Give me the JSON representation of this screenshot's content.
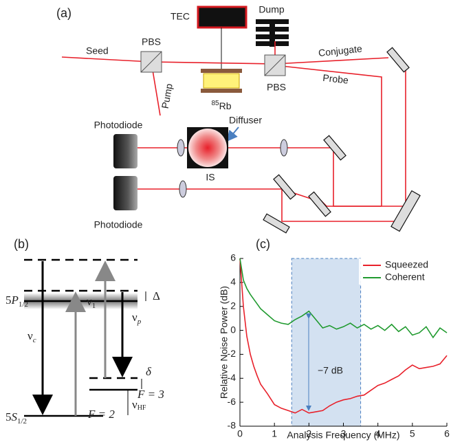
{
  "panel_a": {
    "label": "(a)",
    "tec": "TEC",
    "dump": "Dump",
    "seed": "Seed",
    "pbs_left": "PBS",
    "pbs_right": "PBS",
    "pump": "Pump",
    "rb": {
      "isotope": "85",
      "element": "Rb"
    },
    "conjugate": "Conjugate",
    "probe": "Probe",
    "photodiode_top": "Photodiode",
    "photodiode_bottom": "Photodiode",
    "diffuser": "Diffuser",
    "is": "IS"
  },
  "panel_b": {
    "label": "(b)",
    "level_upper": {
      "main": "5",
      "italic": "P",
      "sub": "1/2"
    },
    "level_lower": {
      "main": "5",
      "italic": "S",
      "sub": "1/2"
    },
    "delta_big": "Δ",
    "delta_small": "δ",
    "nu_c": {
      "main": "ν",
      "sub": "c"
    },
    "nu_1": {
      "main": "ν",
      "sub": "1"
    },
    "nu_p": {
      "main": "ν",
      "sub": "p"
    },
    "nu_hf": {
      "main": "ν",
      "sub": "HF"
    },
    "f3": "F = 3",
    "f2": "F = 2"
  },
  "panel_c_label": "(c)",
  "chart_data": {
    "type": "line",
    "x_label": "Analysis Frequency (MHz)",
    "y_label": "Relative Noise Power (dB)",
    "x": [
      0,
      0.1,
      0.2,
      0.3,
      0.4,
      0.5,
      0.6,
      0.8,
      1.0,
      1.2,
      1.4,
      1.6,
      1.8,
      2.0,
      2.2,
      2.4,
      2.6,
      2.8,
      3.0,
      3.2,
      3.4,
      3.6,
      3.8,
      4.0,
      4.2,
      4.4,
      4.6,
      4.8,
      5.0,
      5.2,
      5.4,
      5.6,
      5.8,
      6.0
    ],
    "series": [
      {
        "name": "Squeezed",
        "color": "#e8202a",
        "values": [
          6,
          2,
          -0.5,
          -2,
          -3,
          -3.8,
          -4.5,
          -5.3,
          -6.2,
          -6.5,
          -6.7,
          -6.9,
          -6.6,
          -6.9,
          -6.8,
          -6.7,
          -6.3,
          -6.0,
          -5.8,
          -5.7,
          -5.5,
          -5.4,
          -5.0,
          -4.6,
          -4.4,
          -4.1,
          -3.8,
          -3.3,
          -2.9,
          -3.2,
          -3.1,
          -3.0,
          -2.8,
          -2.1
        ]
      },
      {
        "name": "Coherent",
        "color": "#1f9a2e",
        "values": [
          6,
          4.2,
          3.5,
          3.0,
          2.6,
          2.2,
          1.8,
          1.3,
          0.8,
          0.6,
          0.5,
          0.9,
          1.2,
          1.6,
          0.9,
          0.2,
          0.4,
          0.1,
          0.3,
          0.6,
          0.2,
          0.5,
          0.1,
          0.4,
          0.0,
          0.5,
          -0.1,
          0.3,
          -0.4,
          -0.2,
          0.3,
          -0.6,
          0.2,
          -0.2
        ]
      }
    ],
    "xlim": [
      0,
      6
    ],
    "xticks": [
      0,
      1,
      2,
      3,
      4,
      5,
      6
    ],
    "ylim": [
      -8,
      6
    ],
    "yticks": [
      -8,
      -6,
      -4,
      -2,
      0,
      2,
      4,
      6
    ],
    "shaded_range": [
      1.5,
      3.5
    ],
    "annotation": "−7 dB",
    "legend": "upper right"
  }
}
